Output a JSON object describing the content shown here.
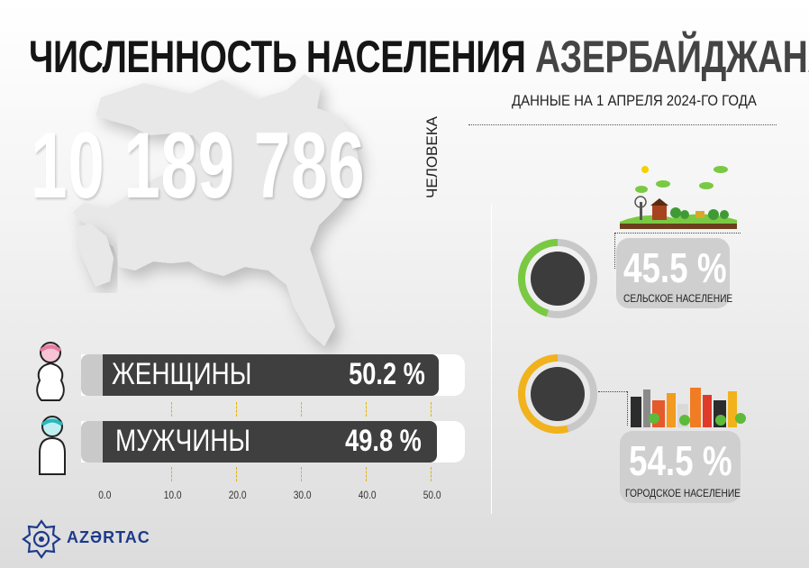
{
  "header": {
    "title_part1": "ЧИСЛЕННОСТЬ НАСЕЛЕНИЯ",
    "title_part2": "АЗЕРБАЙДЖАНА",
    "subtitle": "ДАННЫЕ НА 1 АПРЕЛЯ 2024-ГО ГОДА"
  },
  "population": {
    "value": "10 189 786",
    "unit": "ЧЕЛОВЕКА"
  },
  "colors": {
    "bar_fill": "#3f3f3f",
    "rural_accent": "#7ac943",
    "urban_accent": "#f2b21b",
    "donut_track": "#c8c8c8",
    "donut_center": "#3c3c3c",
    "brand": "#1d3a8a"
  },
  "icons": {
    "woman": "woman-icon",
    "man": "man-icon",
    "rural": "rural-landscape-icon",
    "urban": "city-skyline-icon",
    "map": "azerbaijan-map-silhouette",
    "logo": "azertac-logo-icon"
  },
  "chart_data": [
    {
      "type": "bar",
      "orientation": "horizontal",
      "categories": [
        "ЖЕНЩИНЫ",
        "МУЖЧИНЫ"
      ],
      "values": [
        50.2,
        49.8
      ],
      "value_labels": [
        "50.2 %",
        "49.8 %"
      ],
      "xlim": [
        0,
        50
      ],
      "ticks": [
        "0.0",
        "10.0",
        "20.0",
        "30.0",
        "40.0",
        "50.0"
      ],
      "grid": true
    },
    {
      "type": "pie",
      "categories": [
        "СЕЛЬСКОЕ НАСЕЛЕНИЕ",
        "ГОРОДСКОЕ НАСЕЛЕНИЕ"
      ],
      "values": [
        45.5,
        54.5
      ],
      "value_labels": [
        "45.5 %",
        "54.5 %"
      ]
    }
  ],
  "brand": {
    "name": "AZƏRTAC"
  }
}
